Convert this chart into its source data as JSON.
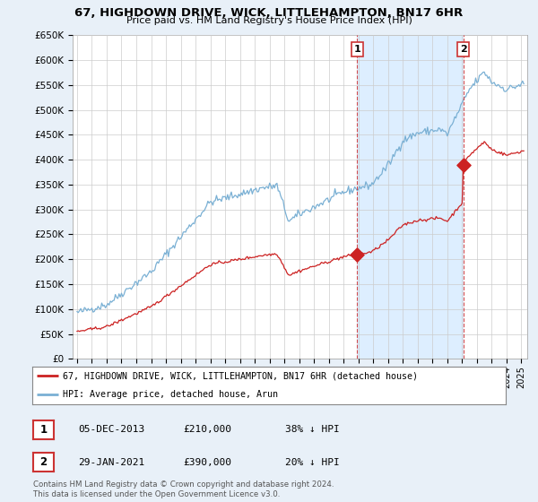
{
  "title": "67, HIGHDOWN DRIVE, WICK, LITTLEHAMPTON, BN17 6HR",
  "subtitle": "Price paid vs. HM Land Registry's House Price Index (HPI)",
  "legend_line1": "67, HIGHDOWN DRIVE, WICK, LITTLEHAMPTON, BN17 6HR (detached house)",
  "legend_line2": "HPI: Average price, detached house, Arun",
  "annotation1_label": "1",
  "annotation1_date": "05-DEC-2013",
  "annotation1_price": "£210,000",
  "annotation1_hpi": "38% ↓ HPI",
  "annotation2_label": "2",
  "annotation2_date": "29-JAN-2021",
  "annotation2_price": "£390,000",
  "annotation2_hpi": "20% ↓ HPI",
  "footnote": "Contains HM Land Registry data © Crown copyright and database right 2024.\nThis data is licensed under the Open Government Licence v3.0.",
  "ylim": [
    0,
    650000
  ],
  "ytick_max": 650000,
  "ytick_step": 50000,
  "xlim_start": 1994.7,
  "xlim_end": 2025.4,
  "hpi_color": "#7ab0d4",
  "price_color": "#cc2222",
  "shade_color": "#ddeeff",
  "background_color": "#e8f0f8",
  "plot_bg_color": "#ffffff",
  "grid_color": "#cccccc",
  "t1": 2013.92,
  "t2": 2021.08,
  "p1": 210000,
  "p2": 390000
}
